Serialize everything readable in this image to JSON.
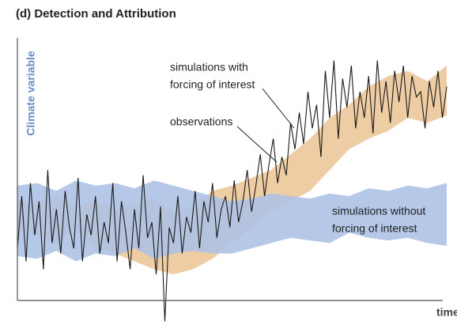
{
  "chart_data": {
    "type": "band-line",
    "title": "(d) Detection and Attribution",
    "ylabel": "Climate variable",
    "xlabel": "time",
    "ylim": [
      0,
      100
    ],
    "bands": [
      {
        "color": "#efcda4",
        "upper": [
          38,
          37,
          40,
          36,
          38,
          35,
          37,
          39,
          34,
          36,
          42,
          44,
          47,
          50,
          56,
          62,
          70,
          75,
          82,
          86,
          88,
          84,
          90
        ],
        "lower": [
          27,
          25,
          22,
          28,
          20,
          18,
          15,
          12,
          10,
          12,
          16,
          22,
          28,
          34,
          38,
          42,
          50,
          58,
          62,
          65,
          70,
          68,
          71
        ]
      },
      {
        "color": "#aec2e4",
        "upper": [
          44,
          45,
          42,
          46,
          44,
          45,
          43,
          46,
          44,
          42,
          40,
          38,
          39,
          41,
          40,
          39,
          41,
          40,
          43,
          42,
          44,
          43,
          45
        ],
        "lower": [
          17,
          16,
          19,
          15,
          18,
          17,
          20,
          16,
          18,
          19,
          18,
          18,
          20,
          22,
          24,
          23,
          22,
          26,
          24,
          23,
          24,
          22,
          21
        ]
      }
    ],
    "observations": {
      "color": "#1a1a1a",
      "values": [
        20,
        40,
        15,
        45,
        25,
        38,
        12,
        50,
        22,
        35,
        18,
        42,
        28,
        20,
        47,
        15,
        33,
        25,
        40,
        18,
        30,
        22,
        45,
        15,
        38,
        26,
        12,
        35,
        20,
        48,
        24,
        30,
        10,
        36,
        -8,
        28,
        22,
        40,
        18,
        32,
        26,
        42,
        20,
        38,
        30,
        45,
        24,
        35,
        40,
        28,
        46,
        30,
        38,
        50,
        34,
        44,
        56,
        40,
        52,
        62,
        45,
        55,
        48,
        68,
        58,
        72,
        60,
        80,
        66,
        75,
        55,
        88,
        70,
        92,
        62,
        85,
        74,
        90,
        66,
        80,
        70,
        86,
        64,
        92,
        72,
        84,
        68,
        88,
        76,
        90,
        70,
        86,
        78,
        80,
        66,
        84,
        74,
        88,
        70,
        82
      ]
    },
    "annotations": [
      {
        "lines": [
          "simulations with",
          "forcing of interest"
        ]
      },
      {
        "lines": [
          "observations"
        ]
      },
      {
        "lines": [
          "simulations without",
          "forcing of interest"
        ]
      }
    ]
  }
}
